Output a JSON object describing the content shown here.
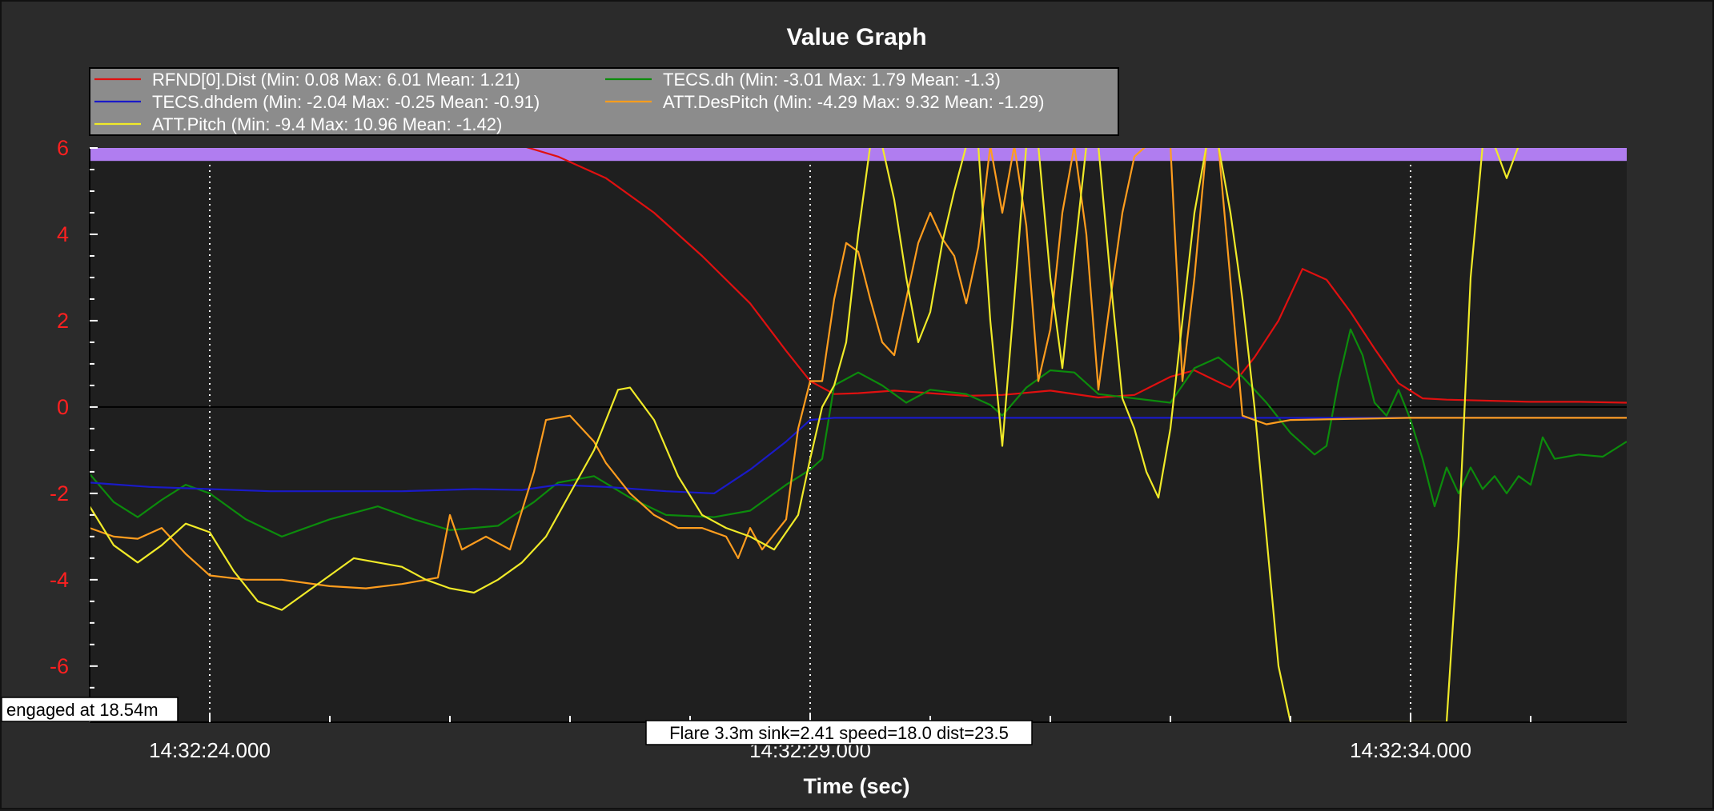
{
  "window": {
    "title": "Value Graph"
  },
  "chart_data": {
    "type": "line",
    "title": "Value Graph",
    "xlabel": "Time (sec)",
    "ylabel": "",
    "xlim": [
      18.0,
      30.8
    ],
    "ylim": [
      -7.3,
      6.0
    ],
    "yticks": [
      6,
      4,
      2,
      0,
      -2,
      -4,
      -6
    ],
    "xticks": [
      {
        "t": 19.0,
        "label": "14:32:24.000"
      },
      {
        "t": 24.0,
        "label": "14:32:29.000"
      },
      {
        "t": 29.0,
        "label": "14:32:34.000"
      }
    ],
    "grid": {
      "vertical_dotted": true,
      "zero_line": true
    },
    "legend_position": "top-left",
    "colors": {
      "background": "#2b2b2b",
      "plot_area": "#1f1f1f",
      "legend_box": "#8c8c8c",
      "band": "#b07df0",
      "rfnd": "#e01010",
      "tecs_dh": "#0c8c0c",
      "tecs_dhdem": "#1a1ac8",
      "att_despitch": "#ff9d1e",
      "att_pitch": "#f0ea28"
    },
    "band": {
      "y_from": 5.7,
      "y_to": 6.0
    },
    "series": [
      {
        "name": "RFND[0].Dist  (Min: 0.08 Max: 6.01 Mean: 1.21)",
        "color_key": "rfnd",
        "points": [
          [
            21.6,
            6.05
          ],
          [
            21.9,
            5.8
          ],
          [
            22.3,
            5.3
          ],
          [
            22.7,
            4.5
          ],
          [
            23.1,
            3.5
          ],
          [
            23.5,
            2.4
          ],
          [
            23.8,
            1.3
          ],
          [
            24.0,
            0.6
          ],
          [
            24.2,
            0.3
          ],
          [
            24.4,
            0.32
          ],
          [
            24.7,
            0.38
          ],
          [
            25.0,
            0.32
          ],
          [
            25.3,
            0.26
          ],
          [
            25.6,
            0.28
          ],
          [
            26.0,
            0.38
          ],
          [
            26.4,
            0.22
          ],
          [
            26.7,
            0.28
          ],
          [
            27.0,
            0.7
          ],
          [
            27.2,
            0.85
          ],
          [
            27.4,
            0.58
          ],
          [
            27.5,
            0.45
          ],
          [
            27.7,
            1.15
          ],
          [
            27.9,
            2.0
          ],
          [
            28.1,
            3.2
          ],
          [
            28.3,
            2.95
          ],
          [
            28.5,
            2.2
          ],
          [
            28.7,
            1.35
          ],
          [
            28.9,
            0.55
          ],
          [
            29.1,
            0.2
          ],
          [
            29.3,
            0.17
          ],
          [
            29.6,
            0.15
          ],
          [
            30.0,
            0.12
          ],
          [
            30.4,
            0.12
          ],
          [
            30.8,
            0.1
          ]
        ]
      },
      {
        "name": "TECS.dh  (Min: -3.01 Max: 1.79 Mean: -1.3)",
        "color_key": "tecs_dh",
        "points": [
          [
            18.0,
            -1.55
          ],
          [
            18.2,
            -2.2
          ],
          [
            18.4,
            -2.55
          ],
          [
            18.6,
            -2.15
          ],
          [
            18.8,
            -1.8
          ],
          [
            19.0,
            -2.0
          ],
          [
            19.3,
            -2.6
          ],
          [
            19.6,
            -3.0
          ],
          [
            20.0,
            -2.6
          ],
          [
            20.4,
            -2.3
          ],
          [
            20.7,
            -2.6
          ],
          [
            21.0,
            -2.85
          ],
          [
            21.4,
            -2.75
          ],
          [
            21.7,
            -2.2
          ],
          [
            21.9,
            -1.75
          ],
          [
            22.2,
            -1.6
          ],
          [
            22.5,
            -2.1
          ],
          [
            22.8,
            -2.5
          ],
          [
            23.2,
            -2.55
          ],
          [
            23.5,
            -2.4
          ],
          [
            23.8,
            -1.8
          ],
          [
            24.0,
            -1.45
          ],
          [
            24.1,
            -1.2
          ],
          [
            24.2,
            0.5
          ],
          [
            24.4,
            0.8
          ],
          [
            24.6,
            0.5
          ],
          [
            24.8,
            0.1
          ],
          [
            25.0,
            0.4
          ],
          [
            25.3,
            0.3
          ],
          [
            25.5,
            0.05
          ],
          [
            25.6,
            -0.2
          ],
          [
            25.8,
            0.45
          ],
          [
            26.0,
            0.85
          ],
          [
            26.2,
            0.8
          ],
          [
            26.4,
            0.3
          ],
          [
            26.7,
            0.2
          ],
          [
            27.0,
            0.1
          ],
          [
            27.2,
            0.9
          ],
          [
            27.4,
            1.15
          ],
          [
            27.6,
            0.7
          ],
          [
            27.8,
            0.1
          ],
          [
            28.0,
            -0.6
          ],
          [
            28.2,
            -1.1
          ],
          [
            28.3,
            -0.9
          ],
          [
            28.4,
            0.6
          ],
          [
            28.5,
            1.8
          ],
          [
            28.6,
            1.2
          ],
          [
            28.7,
            0.1
          ],
          [
            28.8,
            -0.2
          ],
          [
            28.9,
            0.4
          ],
          [
            29.0,
            -0.3
          ],
          [
            29.1,
            -1.2
          ],
          [
            29.2,
            -2.3
          ],
          [
            29.3,
            -1.4
          ],
          [
            29.4,
            -2.0
          ],
          [
            29.5,
            -1.4
          ],
          [
            29.6,
            -1.9
          ],
          [
            29.7,
            -1.6
          ],
          [
            29.8,
            -2.0
          ],
          [
            29.9,
            -1.6
          ],
          [
            30.0,
            -1.8
          ],
          [
            30.1,
            -0.7
          ],
          [
            30.2,
            -1.2
          ],
          [
            30.4,
            -1.1
          ],
          [
            30.6,
            -1.15
          ],
          [
            30.8,
            -0.8
          ]
        ]
      },
      {
        "name": "TECS.dhdem  (Min: -2.04 Max: -0.25 Mean: -0.91)",
        "color_key": "tecs_dhdem",
        "points": [
          [
            18.0,
            -1.75
          ],
          [
            18.5,
            -1.85
          ],
          [
            19.0,
            -1.9
          ],
          [
            19.5,
            -1.95
          ],
          [
            20.0,
            -1.95
          ],
          [
            20.6,
            -1.95
          ],
          [
            21.2,
            -1.9
          ],
          [
            21.6,
            -1.92
          ],
          [
            21.9,
            -1.8
          ],
          [
            22.3,
            -1.85
          ],
          [
            22.8,
            -1.95
          ],
          [
            23.2,
            -2.0
          ],
          [
            23.5,
            -1.45
          ],
          [
            23.8,
            -0.8
          ],
          [
            24.0,
            -0.3
          ],
          [
            24.2,
            -0.25
          ],
          [
            25.0,
            -0.25
          ],
          [
            27.0,
            -0.25
          ],
          [
            28.0,
            -0.25
          ],
          [
            29.0,
            -0.25
          ],
          [
            30.0,
            -0.25
          ],
          [
            30.8,
            -0.25
          ]
        ]
      },
      {
        "name": "ATT.DesPitch  (Min: -4.29 Max: 9.32 Mean: -1.29)",
        "color_key": "att_despitch",
        "points": [
          [
            18.0,
            -2.8
          ],
          [
            18.2,
            -3.0
          ],
          [
            18.4,
            -3.05
          ],
          [
            18.6,
            -2.8
          ],
          [
            18.8,
            -3.4
          ],
          [
            19.0,
            -3.9
          ],
          [
            19.3,
            -4.0
          ],
          [
            19.6,
            -4.0
          ],
          [
            20.0,
            -4.15
          ],
          [
            20.3,
            -4.2
          ],
          [
            20.6,
            -4.1
          ],
          [
            20.9,
            -3.95
          ],
          [
            21.0,
            -2.5
          ],
          [
            21.1,
            -3.3
          ],
          [
            21.3,
            -3.0
          ],
          [
            21.5,
            -3.3
          ],
          [
            21.7,
            -1.5
          ],
          [
            21.8,
            -0.3
          ],
          [
            22.0,
            -0.2
          ],
          [
            22.2,
            -0.8
          ],
          [
            22.3,
            -1.3
          ],
          [
            22.5,
            -2.0
          ],
          [
            22.7,
            -2.5
          ],
          [
            22.9,
            -2.8
          ],
          [
            23.1,
            -2.8
          ],
          [
            23.3,
            -3.0
          ],
          [
            23.4,
            -3.5
          ],
          [
            23.5,
            -2.8
          ],
          [
            23.6,
            -3.3
          ],
          [
            23.8,
            -2.6
          ],
          [
            23.9,
            -0.5
          ],
          [
            24.0,
            0.6
          ],
          [
            24.1,
            0.6
          ],
          [
            24.2,
            2.5
          ],
          [
            24.3,
            3.8
          ],
          [
            24.4,
            3.6
          ],
          [
            24.5,
            2.5
          ],
          [
            24.6,
            1.5
          ],
          [
            24.7,
            1.2
          ],
          [
            24.8,
            2.5
          ],
          [
            24.9,
            3.8
          ],
          [
            25.0,
            4.5
          ],
          [
            25.1,
            3.9
          ],
          [
            25.2,
            3.5
          ],
          [
            25.3,
            2.4
          ],
          [
            25.4,
            3.7
          ],
          [
            25.5,
            6.05
          ],
          [
            25.6,
            4.5
          ],
          [
            25.7,
            6.05
          ],
          [
            25.8,
            4.2
          ],
          [
            25.9,
            0.6
          ],
          [
            26.0,
            1.8
          ],
          [
            26.1,
            4.5
          ],
          [
            26.2,
            6.05
          ],
          [
            26.3,
            4.0
          ],
          [
            26.4,
            0.4
          ],
          [
            26.5,
            2.5
          ],
          [
            26.6,
            4.5
          ],
          [
            26.7,
            5.8
          ],
          [
            26.8,
            6.05
          ],
          [
            27.0,
            6.05
          ],
          [
            27.1,
            0.6
          ],
          [
            27.2,
            3.0
          ],
          [
            27.3,
            6.05
          ],
          [
            27.4,
            6.05
          ],
          [
            27.6,
            -0.2
          ],
          [
            27.8,
            -0.4
          ],
          [
            28.0,
            -0.3
          ],
          [
            29.0,
            -0.25
          ],
          [
            30.8,
            -0.25
          ]
        ]
      },
      {
        "name": "ATT.Pitch  (Min: -9.4 Max: 10.96 Mean: -1.42)",
        "color_key": "att_pitch",
        "points": [
          [
            18.0,
            -2.3
          ],
          [
            18.2,
            -3.2
          ],
          [
            18.4,
            -3.6
          ],
          [
            18.6,
            -3.2
          ],
          [
            18.8,
            -2.7
          ],
          [
            19.0,
            -2.9
          ],
          [
            19.2,
            -3.8
          ],
          [
            19.4,
            -4.5
          ],
          [
            19.6,
            -4.7
          ],
          [
            19.8,
            -4.3
          ],
          [
            20.0,
            -3.9
          ],
          [
            20.2,
            -3.5
          ],
          [
            20.4,
            -3.6
          ],
          [
            20.6,
            -3.7
          ],
          [
            20.8,
            -4.0
          ],
          [
            21.0,
            -4.2
          ],
          [
            21.2,
            -4.3
          ],
          [
            21.4,
            -4.0
          ],
          [
            21.6,
            -3.6
          ],
          [
            21.8,
            -3.0
          ],
          [
            22.0,
            -2.0
          ],
          [
            22.2,
            -1.0
          ],
          [
            22.4,
            0.4
          ],
          [
            22.5,
            0.45
          ],
          [
            22.7,
            -0.3
          ],
          [
            22.9,
            -1.6
          ],
          [
            23.1,
            -2.5
          ],
          [
            23.3,
            -2.8
          ],
          [
            23.5,
            -3.0
          ],
          [
            23.7,
            -3.3
          ],
          [
            23.9,
            -2.5
          ],
          [
            24.0,
            -1.2
          ],
          [
            24.1,
            0.0
          ],
          [
            24.2,
            0.5
          ],
          [
            24.3,
            1.5
          ],
          [
            24.4,
            4.0
          ],
          [
            24.5,
            6.05
          ],
          [
            24.6,
            6.05
          ],
          [
            24.7,
            4.8
          ],
          [
            24.8,
            3.0
          ],
          [
            24.9,
            1.5
          ],
          [
            25.0,
            2.2
          ],
          [
            25.1,
            3.8
          ],
          [
            25.2,
            5.0
          ],
          [
            25.3,
            6.05
          ],
          [
            25.4,
            6.05
          ],
          [
            25.5,
            2.0
          ],
          [
            25.6,
            -0.9
          ],
          [
            25.7,
            2.5
          ],
          [
            25.8,
            6.05
          ],
          [
            25.9,
            6.05
          ],
          [
            26.0,
            3.0
          ],
          [
            26.1,
            0.9
          ],
          [
            26.2,
            3.5
          ],
          [
            26.3,
            6.05
          ],
          [
            26.4,
            6.05
          ],
          [
            26.5,
            3.0
          ],
          [
            26.6,
            0.2
          ],
          [
            26.7,
            -0.5
          ],
          [
            26.8,
            -1.5
          ],
          [
            26.9,
            -2.1
          ],
          [
            27.0,
            -0.5
          ],
          [
            27.1,
            2.0
          ],
          [
            27.2,
            4.5
          ],
          [
            27.3,
            6.05
          ],
          [
            27.4,
            6.05
          ],
          [
            27.5,
            4.5
          ],
          [
            27.6,
            2.5
          ],
          [
            27.7,
            0.0
          ],
          [
            27.8,
            -3.0
          ],
          [
            27.9,
            -6.0
          ],
          [
            28.0,
            -7.3
          ],
          [
            29.3,
            -7.3
          ],
          [
            29.4,
            -3.0
          ],
          [
            29.5,
            3.0
          ],
          [
            29.6,
            6.05
          ],
          [
            29.7,
            6.05
          ],
          [
            29.8,
            5.3
          ],
          [
            29.9,
            6.05
          ],
          [
            30.8,
            6.05
          ]
        ]
      }
    ],
    "annotations": [
      {
        "id": "engaged",
        "text": "engaged at 18.54m",
        "t": 18.0,
        "y": -7.0
      },
      {
        "id": "flare",
        "text": "Flare 3.3m sink=2.41 speed=18.0 dist=23.5",
        "t": 24.0,
        "y": -7.8
      }
    ]
  }
}
